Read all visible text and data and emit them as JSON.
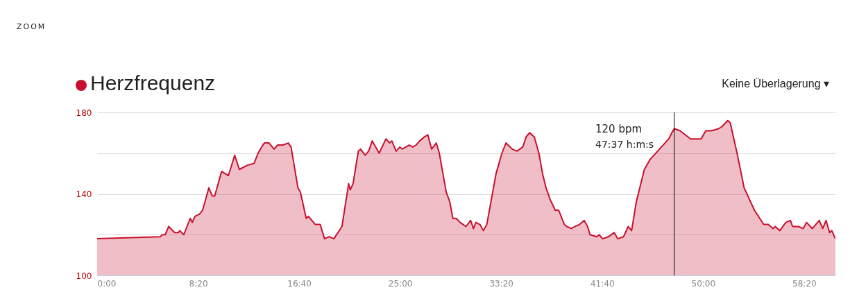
{
  "chart_data": {
    "type": "area",
    "title": "Herzfrequenz",
    "annotations": [
      "ZOOM",
      "Keine Überlagerung ▾",
      "120 bpm",
      "47:37 h:m:s"
    ],
    "x": [
      0,
      312,
      323,
      337,
      354,
      384,
      403,
      409,
      429,
      461,
      471,
      484,
      506,
      522,
      553,
      570,
      582,
      616,
      650,
      681,
      704,
      742,
      777,
      797,
      814,
      828,
      851,
      876,
      894,
      920,
      946,
      960,
      994,
      1006,
      1035,
      1046,
      1080,
      1104,
      1126,
      1149,
      1172,
      1212,
      1245,
      1253,
      1267,
      1293,
      1304,
      1327,
      1344,
      1362,
      1396,
      1430,
      1448,
      1459,
      1480,
      1499,
      1510,
      1528,
      1545,
      1562,
      1579,
      1597,
      1620,
      1637,
      1656,
      1679,
      1694,
      1728,
      1746,
      1761,
      1778,
      1797,
      1826,
      1849,
      1863,
      1875,
      1895,
      1912,
      1929,
      1975,
      2004,
      2024,
      2055,
      2078,
      2107,
      2124,
      2141,
      2164,
      2187,
      2205,
      2222,
      2244,
      2268,
      2285,
      2313,
      2325,
      2348,
      2365,
      2388,
      2411,
      2428,
      2440,
      2474,
      2485,
      2502,
      2531,
      2560,
      2577,
      2606,
      2629,
      2646,
      2669,
      2709,
      2738,
      2784,
      2830,
      2845,
      2857,
      2886,
      2938,
      2990,
      3013,
      3042,
      3076,
      3093,
      3122,
      3134,
      3168,
      3203,
      3254,
      3300,
      3323,
      3346,
      3357,
      3380,
      3409,
      3432,
      3443,
      3472,
      3495,
      3512,
      3541,
      3575,
      3592,
      3609,
      3626,
      3637,
      3655
    ],
    "series": [
      {
        "color": "#c8102e",
        "values": [
          118,
          119,
          120,
          120,
          124,
          121,
          121,
          122,
          120,
          128,
          126,
          129,
          130,
          132,
          143,
          139,
          139,
          151,
          149,
          159,
          152,
          154,
          155,
          160,
          163,
          165,
          165,
          162,
          164,
          164,
          165,
          163,
          143,
          141,
          128,
          129,
          125,
          125,
          118,
          119,
          118,
          124,
          145,
          142,
          145,
          161,
          162,
          159,
          161,
          166,
          160,
          167,
          165,
          166,
          161,
          163,
          162,
          163,
          164,
          163,
          164,
          166,
          168,
          169,
          162,
          165,
          160,
          141,
          136,
          128,
          128,
          126,
          124,
          127,
          123,
          126,
          125,
          122,
          125,
          150,
          160,
          165,
          162,
          161,
          163,
          168,
          170,
          168,
          160,
          150,
          143,
          137,
          132,
          132,
          125,
          124,
          123,
          124,
          125,
          127,
          124,
          120,
          119,
          120,
          118,
          119,
          121,
          118,
          119,
          124,
          122,
          136,
          152,
          157,
          162,
          167,
          170,
          172,
          171,
          167,
          167,
          171,
          171,
          172,
          173,
          176,
          175,
          160,
          143,
          132,
          125,
          125,
          123,
          124,
          122,
          126,
          127,
          124,
          124,
          123,
          126,
          123,
          127,
          123,
          127,
          121,
          122,
          118
        ]
      }
    ],
    "xlim": [
      0,
      3655
    ],
    "xticks": [
      {
        "value": 0,
        "label": "0:00"
      },
      {
        "value": 500,
        "label": "8:20"
      },
      {
        "value": 1000,
        "label": "16:40"
      },
      {
        "value": 1500,
        "label": "25:00"
      },
      {
        "value": 2000,
        "label": "33:20"
      },
      {
        "value": 2500,
        "label": "41:40"
      },
      {
        "value": 3000,
        "label": "50:00"
      },
      {
        "value": 3500,
        "label": "58:20"
      }
    ],
    "ylim": [
      100,
      180
    ],
    "yticks": [
      100,
      {
        "value": 120,
        "label": null
      },
      140,
      {
        "value": 160,
        "label": null
      },
      180
    ],
    "grid": "y",
    "ref_lines": [
      {
        "axis": "x",
        "value": 2857,
        "color": "#000000"
      }
    ]
  }
}
